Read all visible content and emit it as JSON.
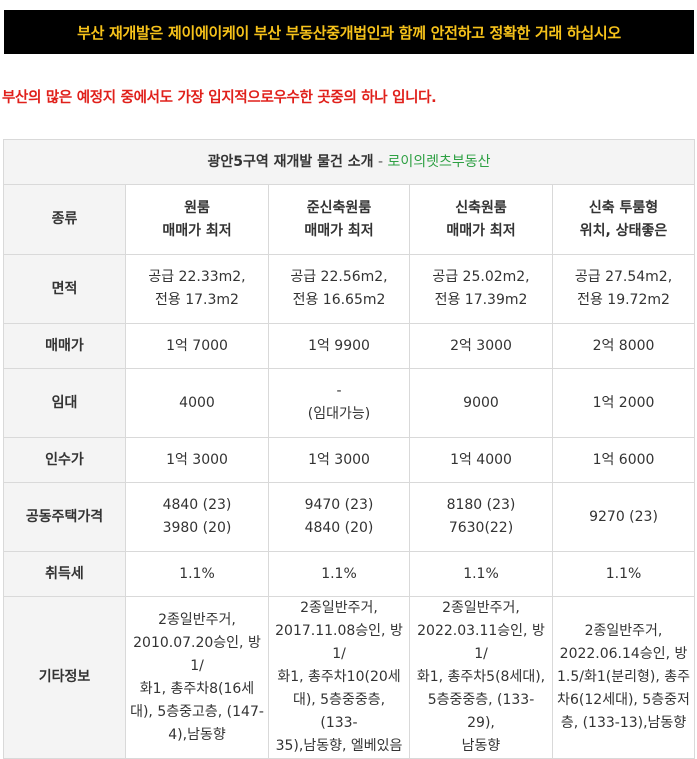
{
  "banner": {
    "text": "부산 재개발은 제이에이케이 부산 부동산중개법인과 함께 안전하고 정확한 거래 하십시오"
  },
  "intro": {
    "text": "부산의 많은 예정지 중에서도 가장 입지적으로우수한 곳중의 하나 입니다."
  },
  "table": {
    "caption": {
      "title": "광안5구역 재개발 물건 소개",
      "separator": " - ",
      "office": "로이의렛츠부동산"
    },
    "row_labels": {
      "type": "종류",
      "area": "면적",
      "price": "매매가",
      "lease": "임대",
      "takeover": "인수가",
      "official_price": "공동주택가격",
      "tax": "취득세",
      "etc": "기타정보"
    },
    "columns": [
      {
        "type": [
          "원룸",
          "매매가 최저"
        ],
        "area": [
          "공급 22.33m2,",
          "전용 17.3m2"
        ],
        "price": "1억 7000",
        "lease": [
          "4000"
        ],
        "takeover": "1억 3000",
        "official_price": [
          "4840 (23)",
          "3980 (20)"
        ],
        "tax": "1.1%",
        "etc": [
          "2종일반주거,",
          "2010.07.20승인, 방1/",
          "화1, 총주차8(16세",
          "대), 5층중고층, (147-",
          "4),남동향"
        ]
      },
      {
        "type": [
          "준신축원룸",
          "매매가 최저"
        ],
        "area": [
          "공급 22.56m2,",
          "전용 16.65m2"
        ],
        "price": "1억 9900",
        "lease": [
          "-",
          "(임대가능)"
        ],
        "takeover": "1억 3000",
        "official_price": [
          "9470 (23)",
          "4840 (20)"
        ],
        "tax": "1.1%",
        "etc": [
          "2종일반주거,",
          "2017.11.08승인, 방1/",
          "화1, 총주차10(20세",
          "대), 5층중중층, (133-",
          "35),남동향, 엘베있음"
        ]
      },
      {
        "type": [
          "신축원룸",
          "매매가 최저"
        ],
        "area": [
          "공급 25.02m2,",
          "전용 17.39m2"
        ],
        "price": "2억 3000",
        "lease": [
          "9000"
        ],
        "takeover": "1억 4000",
        "official_price": [
          "8180 (23)",
          "7630(22)"
        ],
        "tax": "1.1%",
        "etc": [
          "2종일반주거,",
          "2022.03.11승인, 방1/",
          "화1, 총주차5(8세대),",
          "5층중중층, (133-29),",
          "남동향"
        ]
      },
      {
        "type": [
          "신축 투룸형",
          "위치, 상태좋은"
        ],
        "area": [
          "공급 27.54m2,",
          "전용 19.72m2"
        ],
        "price": "2억 8000",
        "lease": [
          "1억 2000"
        ],
        "takeover": "1억 6000",
        "official_price": [
          "9270 (23)"
        ],
        "tax": "1.1%",
        "etc": [
          "2종일반주거,",
          "2022.06.14승인, 방",
          "1.5/화1(분리형), 총주",
          "차6(12세대), 5층중저",
          "층, (133-13),남동향"
        ]
      }
    ]
  },
  "colors": {
    "banner_bg": "#000000",
    "banner_text": "#f6c21a",
    "intro": "#e0201b",
    "label_blue": "#1a7bd0",
    "head_green": "#14a26b",
    "takeover_red": "#e0201b"
  }
}
